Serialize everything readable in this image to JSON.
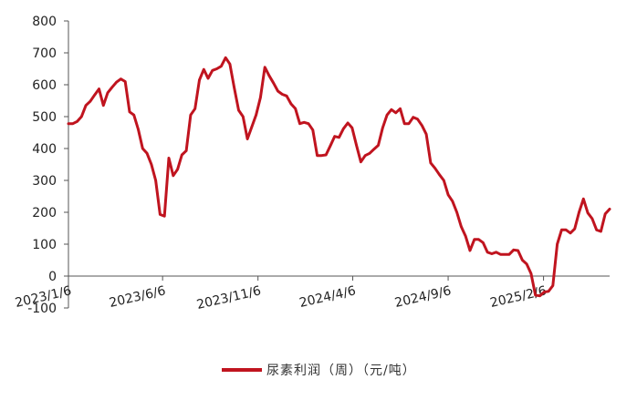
{
  "chart_data": {
    "type": "line",
    "title": "",
    "xlabel": "",
    "ylabel": "",
    "ylim": [
      -100,
      800
    ],
    "yticks": [
      -100,
      0,
      100,
      200,
      300,
      400,
      500,
      600,
      700,
      800
    ],
    "ytick_labels": [
      "-100",
      "0",
      "100",
      "200",
      "300",
      "400",
      "500",
      "600",
      "700",
      "800"
    ],
    "xlim": [
      "2023-01-06",
      "2025-05-23"
    ],
    "xticks": [
      "2023-01-06",
      "2023-06-06",
      "2023-11-06",
      "2024-04-06",
      "2024-09-06",
      "2025-02-06"
    ],
    "xtick_labels": [
      "2023/1/6",
      "2023/6/6",
      "2023/11/6",
      "2024/4/6",
      "2024/9/6",
      "2025/2/6"
    ],
    "grid": false,
    "legend_position": "bottom",
    "series": [
      {
        "name": "尿素利润（周）（元/吨）",
        "color": "#c0141f",
        "points": [
          [
            "2023-01-06",
            478
          ],
          [
            "2023-01-13",
            478
          ],
          [
            "2023-01-20",
            485
          ],
          [
            "2023-01-27",
            500
          ],
          [
            "2023-02-03",
            535
          ],
          [
            "2023-02-10",
            548
          ],
          [
            "2023-02-17",
            568
          ],
          [
            "2023-02-24",
            587
          ],
          [
            "2023-03-03",
            535
          ],
          [
            "2023-03-10",
            575
          ],
          [
            "2023-03-17",
            592
          ],
          [
            "2023-03-24",
            608
          ],
          [
            "2023-03-31",
            618
          ],
          [
            "2023-04-07",
            610
          ],
          [
            "2023-04-14",
            515
          ],
          [
            "2023-04-21",
            505
          ],
          [
            "2023-04-28",
            460
          ],
          [
            "2023-05-05",
            400
          ],
          [
            "2023-05-12",
            385
          ],
          [
            "2023-05-19",
            350
          ],
          [
            "2023-05-26",
            300
          ],
          [
            "2023-06-02",
            193
          ],
          [
            "2023-06-09",
            188
          ],
          [
            "2023-06-16",
            370
          ],
          [
            "2023-06-23",
            315
          ],
          [
            "2023-06-30",
            335
          ],
          [
            "2023-07-07",
            380
          ],
          [
            "2023-07-14",
            393
          ],
          [
            "2023-07-21",
            505
          ],
          [
            "2023-07-28",
            525
          ],
          [
            "2023-08-04",
            615
          ],
          [
            "2023-08-11",
            648
          ],
          [
            "2023-08-18",
            620
          ],
          [
            "2023-08-25",
            645
          ],
          [
            "2023-09-01",
            650
          ],
          [
            "2023-09-08",
            658
          ],
          [
            "2023-09-15",
            685
          ],
          [
            "2023-09-22",
            665
          ],
          [
            "2023-09-29",
            590
          ],
          [
            "2023-10-06",
            520
          ],
          [
            "2023-10-13",
            500
          ],
          [
            "2023-10-20",
            430
          ],
          [
            "2023-10-27",
            468
          ],
          [
            "2023-11-03",
            505
          ],
          [
            "2023-11-10",
            560
          ],
          [
            "2023-11-17",
            655
          ],
          [
            "2023-11-24",
            628
          ],
          [
            "2023-12-01",
            605
          ],
          [
            "2023-12-08",
            580
          ],
          [
            "2023-12-15",
            570
          ],
          [
            "2023-12-22",
            565
          ],
          [
            "2023-12-29",
            540
          ],
          [
            "2024-01-05",
            525
          ],
          [
            "2024-01-12",
            478
          ],
          [
            "2024-01-19",
            482
          ],
          [
            "2024-01-26",
            478
          ],
          [
            "2024-02-02",
            458
          ],
          [
            "2024-02-09",
            378
          ],
          [
            "2024-02-16",
            378
          ],
          [
            "2024-02-23",
            380
          ],
          [
            "2024-03-01",
            408
          ],
          [
            "2024-03-08",
            438
          ],
          [
            "2024-03-15",
            435
          ],
          [
            "2024-03-22",
            462
          ],
          [
            "2024-03-29",
            480
          ],
          [
            "2024-04-05",
            465
          ],
          [
            "2024-04-12",
            410
          ],
          [
            "2024-04-19",
            358
          ],
          [
            "2024-04-26",
            378
          ],
          [
            "2024-05-03",
            385
          ],
          [
            "2024-05-10",
            398
          ],
          [
            "2024-05-17",
            410
          ],
          [
            "2024-05-24",
            465
          ],
          [
            "2024-05-31",
            505
          ],
          [
            "2024-06-07",
            522
          ],
          [
            "2024-06-14",
            512
          ],
          [
            "2024-06-21",
            525
          ],
          [
            "2024-06-28",
            478
          ],
          [
            "2024-07-05",
            478
          ],
          [
            "2024-07-12",
            498
          ],
          [
            "2024-07-19",
            492
          ],
          [
            "2024-07-26",
            472
          ],
          [
            "2024-08-02",
            445
          ],
          [
            "2024-08-09",
            355
          ],
          [
            "2024-08-16",
            338
          ],
          [
            "2024-08-23",
            318
          ],
          [
            "2024-08-30",
            300
          ],
          [
            "2024-09-06",
            255
          ],
          [
            "2024-09-13",
            235
          ],
          [
            "2024-09-20",
            200
          ],
          [
            "2024-09-27",
            155
          ],
          [
            "2024-10-04",
            125
          ],
          [
            "2024-10-11",
            80
          ],
          [
            "2024-10-18",
            115
          ],
          [
            "2024-10-25",
            115
          ],
          [
            "2024-11-01",
            105
          ],
          [
            "2024-11-08",
            75
          ],
          [
            "2024-11-15",
            70
          ],
          [
            "2024-11-22",
            75
          ],
          [
            "2024-11-29",
            68
          ],
          [
            "2024-12-06",
            68
          ],
          [
            "2024-12-13",
            68
          ],
          [
            "2024-12-20",
            82
          ],
          [
            "2024-12-27",
            80
          ],
          [
            "2025-01-03",
            50
          ],
          [
            "2025-01-10",
            38
          ],
          [
            "2025-01-17",
            8
          ],
          [
            "2025-01-24",
            -60
          ],
          [
            "2025-01-31",
            -62
          ],
          [
            "2025-02-07",
            -50
          ],
          [
            "2025-02-14",
            -48
          ],
          [
            "2025-02-21",
            -30
          ],
          [
            "2025-02-28",
            100
          ],
          [
            "2025-03-07",
            145
          ],
          [
            "2025-03-14",
            145
          ],
          [
            "2025-03-21",
            135
          ],
          [
            "2025-03-28",
            148
          ],
          [
            "2025-04-04",
            200
          ],
          [
            "2025-04-11",
            242
          ],
          [
            "2025-04-18",
            198
          ],
          [
            "2025-04-25",
            180
          ],
          [
            "2025-05-02",
            145
          ],
          [
            "2025-05-09",
            140
          ],
          [
            "2025-05-16",
            195
          ],
          [
            "2025-05-23",
            210
          ]
        ]
      }
    ]
  }
}
